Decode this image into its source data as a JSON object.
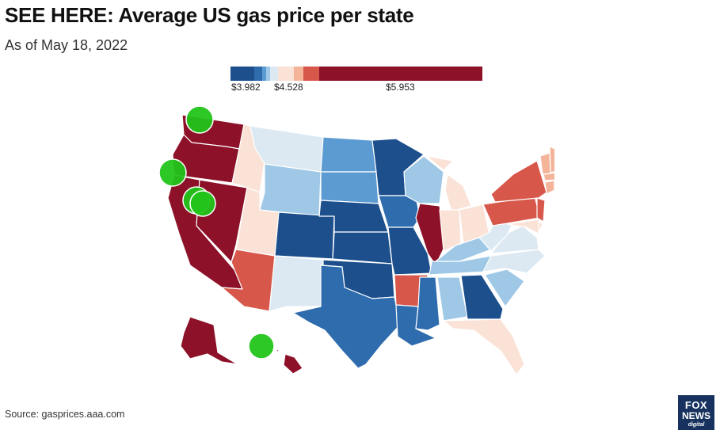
{
  "header": {
    "title": "SEE HERE: Average US gas price per state",
    "subtitle": "As of May 18, 2022"
  },
  "legend": {
    "labels": [
      "$3.982",
      "$4.528",
      "$5.953"
    ],
    "colors": [
      "#1c4f8c",
      "#2e6cae",
      "#5c9bd1",
      "#9ec8e6",
      "#dce9f2",
      "#fbe2d6",
      "#f3b49a",
      "#d8574b",
      "#8d1128"
    ]
  },
  "states": {
    "WA": "#8d1128",
    "OR": "#8d1128",
    "CA": "#8d1128",
    "NV": "#8d1128",
    "IL": "#8d1128",
    "AK": "#8d1128",
    "HI": "#8d1128",
    "AZ": "#d8574b",
    "AR": "#d8574b",
    "NY": "#d8574b",
    "PA": "#d8574b",
    "NJ": "#d8574b",
    "ME": "#f3b49a",
    "VT": "#f3b49a",
    "NH": "#f3b49a",
    "MA": "#f3b49a",
    "CT": "#f3b49a",
    "RI": "#f3b49a",
    "ID": "#fbe2d6",
    "UT": "#fbe2d6",
    "MI": "#fbe2d6",
    "IN": "#fbe2d6",
    "OH": "#fbe2d6",
    "FL": "#fbe2d6",
    "DE": "#fbe2d6",
    "MD": "#fbe2d6",
    "MT": "#dce9f2",
    "NM": "#dce9f2",
    "WV": "#dce9f2",
    "VA": "#dce9f2",
    "NC": "#dce9f2",
    "WY": "#9ec8e6",
    "WI": "#9ec8e6",
    "KY": "#9ec8e6",
    "TN": "#9ec8e6",
    "AL": "#9ec8e6",
    "SC": "#9ec8e6",
    "ND": "#5c9bd1",
    "SD": "#5c9bd1",
    "IA": "#2e6cae",
    "TX": "#2e6cae",
    "LA": "#2e6cae",
    "MS": "#2e6cae",
    "MN": "#1c4f8c",
    "NE": "#1c4f8c",
    "CO": "#1c4f8c",
    "KS": "#1c4f8c",
    "MO": "#1c4f8c",
    "OK": "#1c4f8c",
    "GA": "#1c4f8c"
  },
  "markers": {
    "color": "#22c41a",
    "count": 5
  },
  "footer": {
    "source": "Source: gasprices.aaa.com",
    "logo_line1": "FOX",
    "logo_line2": "NEWS",
    "logo_line3": "digital"
  }
}
